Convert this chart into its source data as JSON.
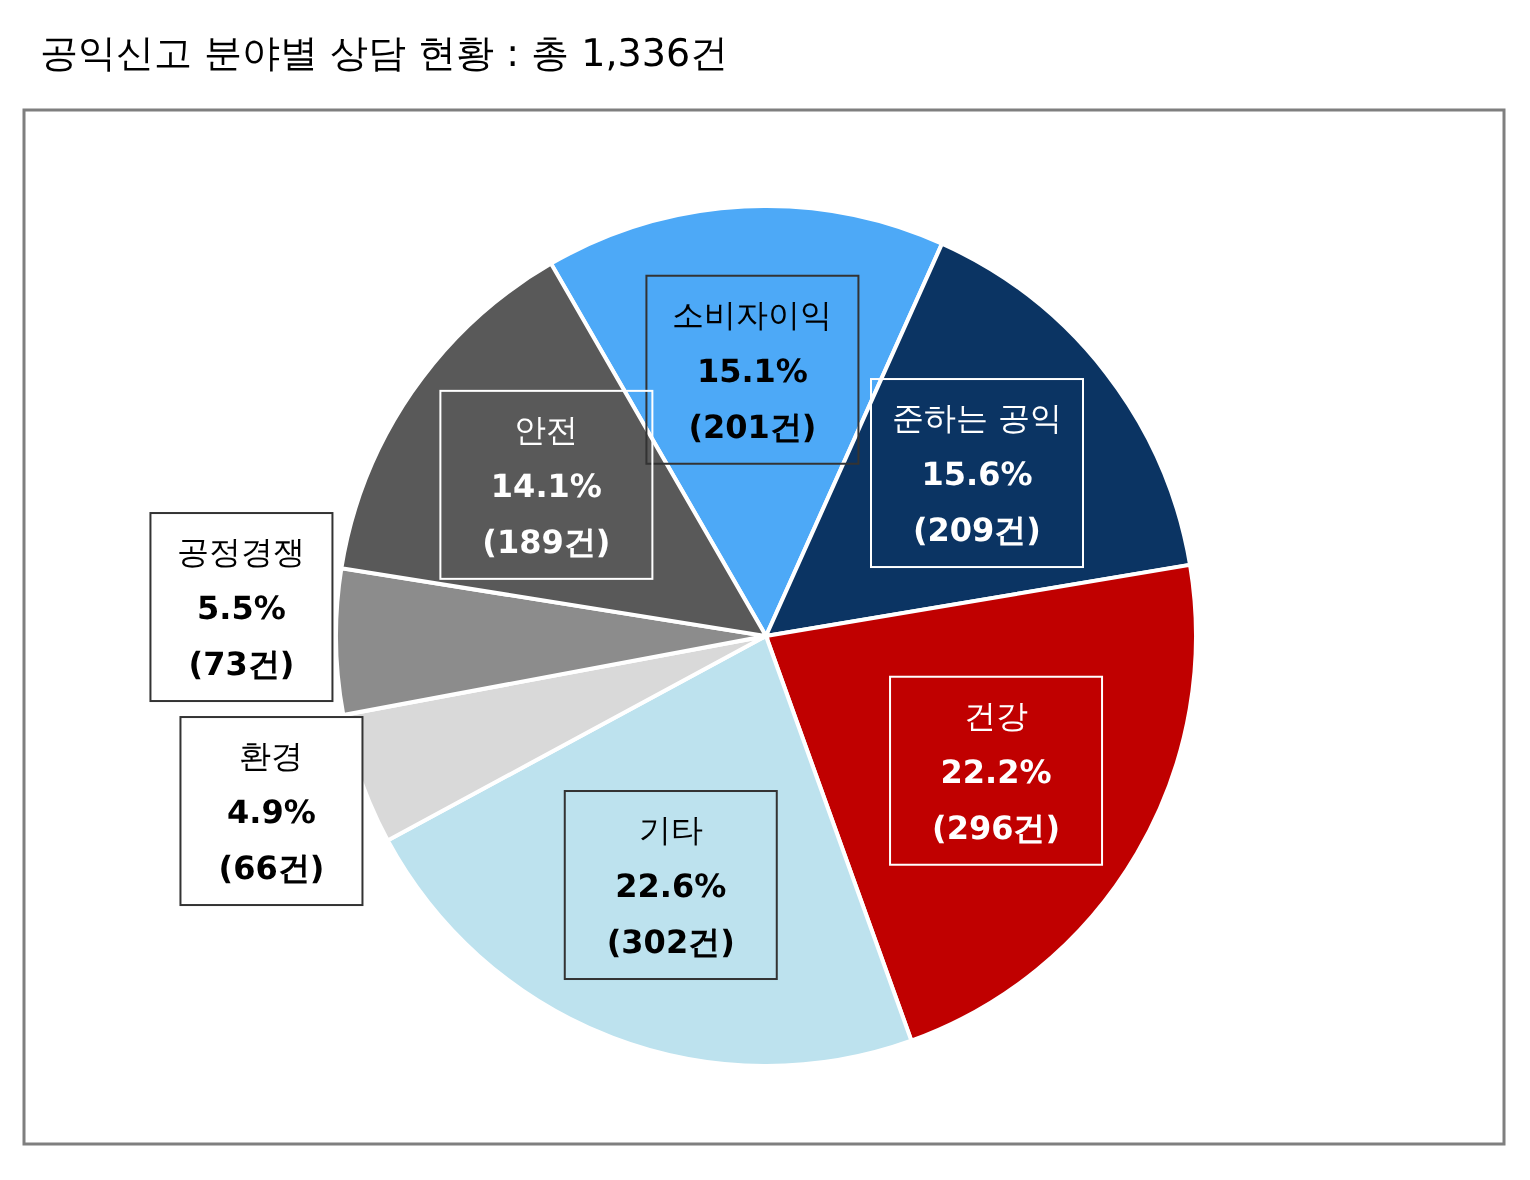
{
  "chart_data": {
    "type": "pie",
    "title": "공익신고 분야별 상담 현황 : 총 1,336건",
    "categories": [
      "소비자이익",
      "준하는 공익",
      "건강",
      "기타",
      "환경",
      "공정경쟁",
      "안전"
    ],
    "values": [
      201,
      209,
      296,
      302,
      66,
      73,
      189
    ],
    "value_labels": [
      "15.1%\n(201건)",
      "15.6%\n(209건)",
      "22.2%\n(296건)",
      "22.6%\n(302건)",
      "4.9%\n(66건)",
      "5.5%\n(73건)",
      "14.1%\n(189건)"
    ],
    "colors": [
      "#4da9f7",
      "#0b3463",
      "#c00000",
      "#bde2ee",
      "#d9d9d9",
      "#8c8c8c",
      "#595959"
    ]
  }
}
